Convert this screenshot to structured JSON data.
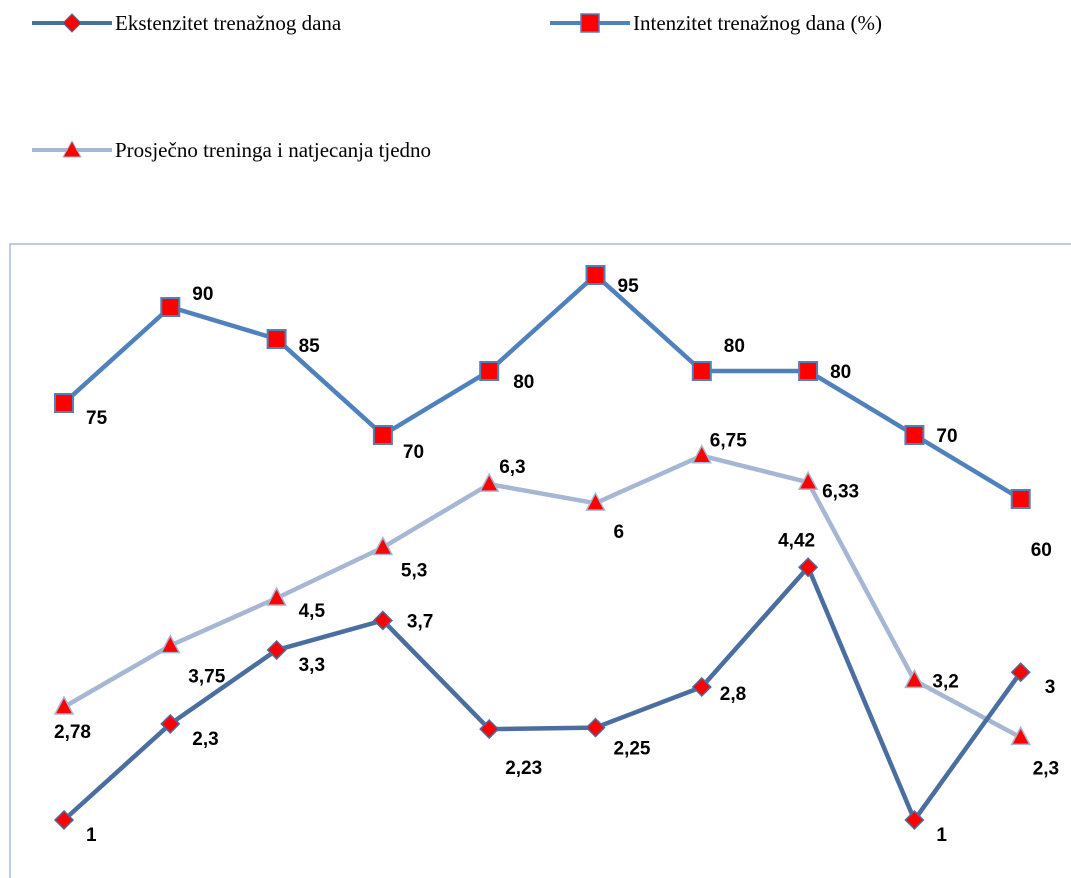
{
  "chart_data": {
    "type": "line",
    "title": "",
    "xlabel": "",
    "ylabel": "",
    "legend_position": "top",
    "grid": false,
    "series": [
      {
        "name": "Ekstenzitet trenažnog dana",
        "values": [
          1,
          2.3,
          3.3,
          3.7,
          2.23,
          2.25,
          2.8,
          4.42,
          1,
          3
        ],
        "labels": [
          "1",
          "2,3",
          "3,3",
          "3,7",
          "2,23",
          "2,25",
          "2,8",
          "4,42",
          "1",
          "3"
        ],
        "color": "#4A6EA0",
        "marker": "diamond",
        "marker_color": "#FF0000"
      },
      {
        "name": "Intenzitet trenažnog dana (%)",
        "values": [
          75,
          90,
          85,
          70,
          80,
          95,
          80,
          80,
          70,
          60
        ],
        "labels": [
          "75",
          "90",
          "85",
          "70",
          "80",
          "95",
          "80",
          "80",
          "70",
          "60"
        ],
        "color": "#4F81BD",
        "marker": "square",
        "marker_color": "#FF0000"
      },
      {
        "name": "Prosječno treninga i natjecanja tjedno",
        "values": [
          2.78,
          3.75,
          4.5,
          5.3,
          6.3,
          6,
          6.75,
          6.33,
          3.2,
          2.3
        ],
        "labels": [
          "2,78",
          "3,75",
          "4,5",
          "5,3",
          "6,3",
          "6",
          "6,75",
          "6,33",
          "3,2",
          "2,3"
        ],
        "color": "#A6B7D4",
        "marker": "triangle",
        "marker_color": "#FF0000"
      }
    ]
  }
}
